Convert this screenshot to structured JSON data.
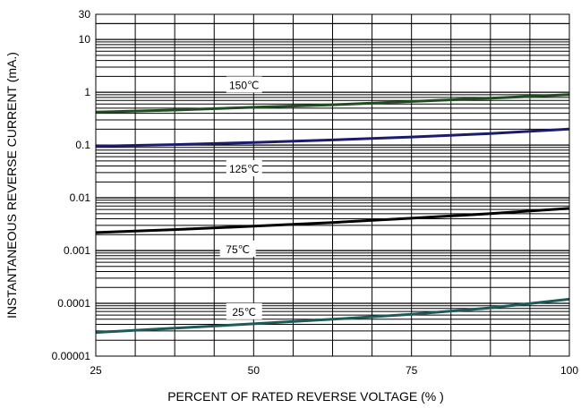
{
  "chart_data": {
    "type": "line",
    "title": "",
    "xlabel": "PERCENT OF RATED REVERSE VOLTAGE (% )",
    "ylabel": "INSTANTANEOUS REVERSE CURRENT (mA.)",
    "xlim": [
      25,
      100
    ],
    "ylim": [
      1e-05,
      30
    ],
    "y_scale": "log",
    "grid": true,
    "x_ticks": [
      25,
      50,
      75,
      100
    ],
    "x_tick_labels": [
      "25",
      "50",
      "75",
      "100"
    ],
    "y_ticks": [
      1e-05,
      0.0001,
      0.001,
      0.01,
      0.1,
      1,
      10,
      30
    ],
    "y_tick_labels": [
      "0.00001",
      "0.0001",
      "0.001",
      "0.01",
      "0.1",
      "1",
      "10",
      "30"
    ],
    "series": [
      {
        "name": "150℃",
        "color": "#1f4d1f",
        "x": [
          25,
          37.5,
          50,
          62.5,
          75,
          87.5,
          100
        ],
        "y": [
          0.42,
          0.46,
          0.52,
          0.58,
          0.67,
          0.77,
          0.9
        ]
      },
      {
        "name": "125℃",
        "color": "#1c1c6e",
        "x": [
          25,
          37.5,
          50,
          62.5,
          75,
          87.5,
          100
        ],
        "y": [
          0.095,
          0.102,
          0.112,
          0.125,
          0.142,
          0.165,
          0.2
        ]
      },
      {
        "name": "75℃",
        "color": "#000000",
        "x": [
          25,
          37.5,
          50,
          62.5,
          75,
          87.5,
          100
        ],
        "y": [
          0.0022,
          0.0025,
          0.0029,
          0.0034,
          0.0041,
          0.005,
          0.0063
        ]
      },
      {
        "name": "25℃",
        "color": "#1e5a5a",
        "x": [
          25,
          37.5,
          50,
          62.5,
          75,
          87.5,
          100
        ],
        "y": [
          2.8e-05,
          3.4e-05,
          4.1e-05,
          5e-05,
          6.2e-05,
          8.2e-05,
          0.00012
        ]
      }
    ]
  }
}
